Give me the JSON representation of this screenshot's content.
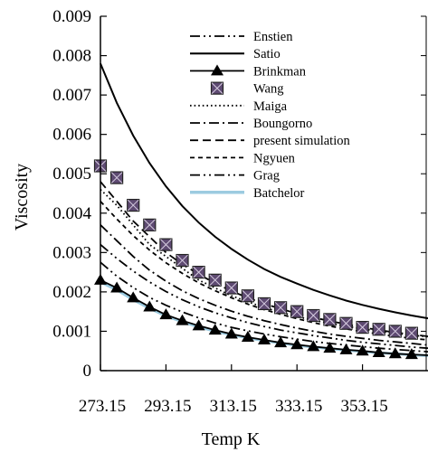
{
  "chart_data": {
    "type": "line",
    "xlabel": "Temp  K",
    "ylabel": "Viscosity",
    "xlim": [
      273.15,
      373.15
    ],
    "ylim": [
      0,
      0.009
    ],
    "x_ticks": [
      "273.15",
      "293.15",
      "313.15",
      "333.15",
      "353.15"
    ],
    "x_tick_values": [
      273.15,
      293.15,
      313.15,
      333.15,
      353.15
    ],
    "y_ticks": [
      "0",
      "0.001",
      "0.002",
      "0.003",
      "0.004",
      "0.005",
      "0.006",
      "0.007",
      "0.008",
      "0.009"
    ],
    "y_tick_values": [
      0,
      0.001,
      0.002,
      0.003,
      0.004,
      0.005,
      0.006,
      0.007,
      0.008,
      0.009
    ],
    "grid": false,
    "legend_position": "top-right",
    "x": [
      273.15,
      278.15,
      283.15,
      288.15,
      293.15,
      298.15,
      303.15,
      308.15,
      313.15,
      318.15,
      323.15,
      328.15,
      333.15,
      338.15,
      343.15,
      348.15,
      353.15,
      358.15,
      363.15,
      368.15,
      373.15
    ],
    "series": [
      {
        "name": "Enstien",
        "dash": "dashdotdot",
        "color": "#000000",
        "values": [
          0.00275,
          0.0024,
          0.00211,
          0.00186,
          0.00166,
          0.00149,
          0.00134,
          0.00121,
          0.0011,
          0.00101,
          0.00093,
          0.00086,
          0.0008,
          0.00074,
          0.00069,
          0.00065,
          0.00061,
          0.00057,
          0.00054,
          0.00051,
          0.00048
        ]
      },
      {
        "name": "Satio",
        "dash": "solid",
        "color": "#000000",
        "values": [
          0.0078,
          0.0068,
          0.00597,
          0.00527,
          0.00468,
          0.00418,
          0.00376,
          0.0034,
          0.00309,
          0.00282,
          0.00258,
          0.00238,
          0.00221,
          0.00205,
          0.00191,
          0.00178,
          0.00167,
          0.00157,
          0.00148,
          0.0014,
          0.00133
        ]
      },
      {
        "name": "Brinkman",
        "dash": "solid",
        "color": "#000000",
        "marker": "triangle",
        "values": [
          0.0023,
          0.0021,
          0.00185,
          0.00162,
          0.00142,
          0.00127,
          0.00114,
          0.00103,
          0.00093,
          0.00085,
          0.00078,
          0.00071,
          0.00066,
          0.00061,
          0.00057,
          0.00053,
          0.0005,
          0.00046,
          0.00043,
          0.00041,
          0.00039
        ]
      },
      {
        "name": "Wang",
        "dash": "none",
        "color": "#000000",
        "marker": "square",
        "values": [
          0.0052,
          0.0049,
          0.0042,
          0.0037,
          0.0032,
          0.0028,
          0.0025,
          0.0023,
          0.0021,
          0.0019,
          0.0017,
          0.0016,
          0.0015,
          0.0014,
          0.0013,
          0.0012,
          0.0011,
          0.00105,
          0.001,
          0.00095,
          0.0009
        ]
      },
      {
        "name": "Maiga",
        "dash": "dot",
        "color": "#000000",
        "values": [
          0.0046,
          0.0042,
          0.0037,
          0.0032,
          0.0029,
          0.0026,
          0.0023,
          0.0021,
          0.0019,
          0.00175,
          0.0016,
          0.00148,
          0.00137,
          0.00128,
          0.0012,
          0.00113,
          0.00106,
          0.001,
          0.00095,
          0.0009,
          0.00086
        ]
      },
      {
        "name": "Boungorno",
        "dash": "dashdot",
        "color": "#000000",
        "values": [
          0.0037,
          0.0033,
          0.0029,
          0.00255,
          0.00227,
          0.00203,
          0.00183,
          0.00166,
          0.00151,
          0.00138,
          0.00127,
          0.00117,
          0.00108,
          0.001,
          0.00093,
          0.00087,
          0.00082,
          0.00077,
          0.00073,
          0.00069,
          0.00065
        ]
      },
      {
        "name": "present simulation",
        "dash": "dash",
        "color": "#000000",
        "values": [
          0.0048,
          0.0043,
          0.0038,
          0.0034,
          0.003,
          0.0027,
          0.00245,
          0.00222,
          0.00202,
          0.00185,
          0.0017,
          0.00157,
          0.00145,
          0.00135,
          0.00126,
          0.00118,
          0.0011,
          0.00103,
          0.00097,
          0.00092,
          0.00087
        ]
      },
      {
        "name": "Ngyuen",
        "dash": "shortdash",
        "color": "#000000",
        "values": [
          0.0043,
          0.00385,
          0.00343,
          0.00306,
          0.00274,
          0.00247,
          0.00223,
          0.00203,
          0.00185,
          0.00169,
          0.00155,
          0.00143,
          0.00132,
          0.00122,
          0.00113,
          0.00106,
          0.00099,
          0.00093,
          0.00087,
          0.00082,
          0.00078
        ]
      },
      {
        "name": "Grag",
        "dash": "dashdotdot",
        "color": "#000000",
        "values": [
          0.0032,
          0.00285,
          0.00253,
          0.00225,
          0.00201,
          0.0018,
          0.00162,
          0.00147,
          0.00134,
          0.00122,
          0.00112,
          0.00103,
          0.00096,
          0.00089,
          0.00083,
          0.00077,
          0.00072,
          0.00068,
          0.00064,
          0.0006,
          0.00057
        ]
      },
      {
        "name": "Batchelor",
        "dash": "solid",
        "color": "#9ccbe0",
        "values": [
          0.00225,
          0.00205,
          0.0018,
          0.00158,
          0.00139,
          0.00124,
          0.00111,
          0.001,
          0.00091,
          0.00083,
          0.00076,
          0.0007,
          0.00064,
          0.0006,
          0.00056,
          0.00052,
          0.00049,
          0.00045,
          0.00043,
          0.0004,
          0.00038
        ]
      }
    ]
  }
}
